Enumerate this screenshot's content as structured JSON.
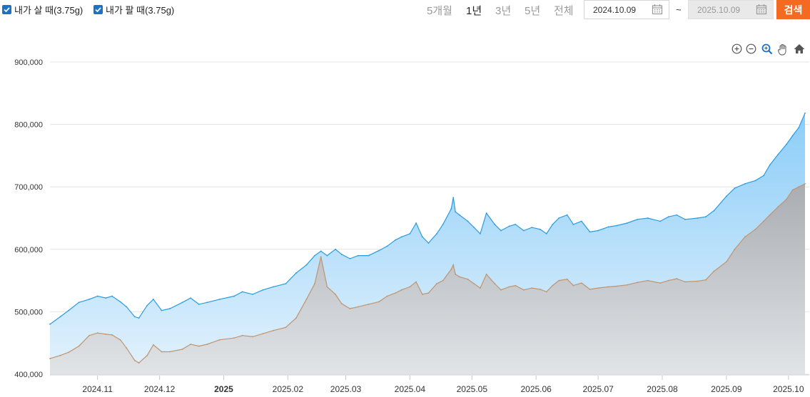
{
  "legend": {
    "buy_label": "내가 살 때(3.75g)",
    "sell_label": "내가 팔 때(3.75g)"
  },
  "periods": [
    "5개월",
    "1년",
    "3년",
    "5년",
    "전체"
  ],
  "active_period": "1년",
  "date_range": {
    "start": "2024.10.09",
    "separator": "~",
    "end": "2025.10.09"
  },
  "search_label": "검색",
  "toolbar_icons": [
    "zoom-in-icon",
    "zoom-out-icon",
    "magnifier-icon",
    "pan-hand-icon",
    "home-icon"
  ],
  "colors": {
    "buy_line": "#2a9be0",
    "buy_fill_top": "#90cff8",
    "sell_line": "#c09470",
    "sell_fill": "#b5b8bc",
    "accent": "#f36a20",
    "checkbox": "#1a73c9"
  },
  "chart_data": {
    "type": "area",
    "x_range": [
      "2024-10-09",
      "2025-10-09"
    ],
    "ylim": [
      400000,
      900000
    ],
    "yticks": [
      "400,000",
      "500,000",
      "600,000",
      "700,000",
      "800,000",
      "900,000"
    ],
    "xticks": [
      {
        "date": "2024-11-01",
        "label": "2024.11"
      },
      {
        "date": "2024-12-01",
        "label": "2024.12"
      },
      {
        "date": "2025-01-01",
        "label": "2025",
        "bold": true
      },
      {
        "date": "2025-02-01",
        "label": "2025.02"
      },
      {
        "date": "2025-03-01",
        "label": "2025.03"
      },
      {
        "date": "2025-04-01",
        "label": "2025.04"
      },
      {
        "date": "2025-05-01",
        "label": "2025.05"
      },
      {
        "date": "2025-06-01",
        "label": "2025.06"
      },
      {
        "date": "2025-07-01",
        "label": "2025.07"
      },
      {
        "date": "2025-08-01",
        "label": "2025.08"
      },
      {
        "date": "2025-09-01",
        "label": "2025.09"
      },
      {
        "date": "2025-10-01",
        "label": "2025.10"
      }
    ],
    "grid": true,
    "series": [
      {
        "name": "내가 살 때(3.75g)",
        "points": [
          [
            "2024-10-09",
            480000
          ],
          [
            "2024-10-14",
            492000
          ],
          [
            "2024-10-18",
            502000
          ],
          [
            "2024-10-23",
            515000
          ],
          [
            "2024-10-28",
            520000
          ],
          [
            "2024-11-01",
            525000
          ],
          [
            "2024-11-05",
            522000
          ],
          [
            "2024-11-08",
            525000
          ],
          [
            "2024-11-12",
            516000
          ],
          [
            "2024-11-15",
            508000
          ],
          [
            "2024-11-19",
            492000
          ],
          [
            "2024-11-21",
            490000
          ],
          [
            "2024-11-25",
            510000
          ],
          [
            "2024-11-28",
            520000
          ],
          [
            "2024-12-02",
            502000
          ],
          [
            "2024-12-06",
            505000
          ],
          [
            "2024-12-12",
            515000
          ],
          [
            "2024-12-16",
            522000
          ],
          [
            "2024-12-20",
            512000
          ],
          [
            "2024-12-24",
            515000
          ],
          [
            "2024-12-30",
            520000
          ],
          [
            "2025-01-06",
            525000
          ],
          [
            "2025-01-10",
            532000
          ],
          [
            "2025-01-15",
            528000
          ],
          [
            "2025-01-20",
            535000
          ],
          [
            "2025-01-25",
            540000
          ],
          [
            "2025-01-31",
            545000
          ],
          [
            "2025-02-05",
            562000
          ],
          [
            "2025-02-10",
            575000
          ],
          [
            "2025-02-14",
            590000
          ],
          [
            "2025-02-17",
            597000
          ],
          [
            "2025-02-20",
            590000
          ],
          [
            "2025-02-24",
            600000
          ],
          [
            "2025-02-27",
            592000
          ],
          [
            "2025-03-03",
            585000
          ],
          [
            "2025-03-07",
            590000
          ],
          [
            "2025-03-12",
            590000
          ],
          [
            "2025-03-17",
            598000
          ],
          [
            "2025-03-21",
            605000
          ],
          [
            "2025-03-25",
            615000
          ],
          [
            "2025-03-28",
            620000
          ],
          [
            "2025-04-01",
            625000
          ],
          [
            "2025-04-04",
            642000
          ],
          [
            "2025-04-07",
            620000
          ],
          [
            "2025-04-10",
            610000
          ],
          [
            "2025-04-14",
            625000
          ],
          [
            "2025-04-17",
            640000
          ],
          [
            "2025-04-21",
            665000
          ],
          [
            "2025-04-22",
            683000
          ],
          [
            "2025-04-23",
            660000
          ],
          [
            "2025-04-25",
            655000
          ],
          [
            "2025-04-29",
            645000
          ],
          [
            "2025-05-02",
            635000
          ],
          [
            "2025-05-05",
            625000
          ],
          [
            "2025-05-08",
            658000
          ],
          [
            "2025-05-12",
            640000
          ],
          [
            "2025-05-15",
            630000
          ],
          [
            "2025-05-19",
            637000
          ],
          [
            "2025-05-22",
            640000
          ],
          [
            "2025-05-26",
            630000
          ],
          [
            "2025-05-30",
            635000
          ],
          [
            "2025-06-03",
            632000
          ],
          [
            "2025-06-06",
            625000
          ],
          [
            "2025-06-09",
            640000
          ],
          [
            "2025-06-12",
            650000
          ],
          [
            "2025-06-16",
            655000
          ],
          [
            "2025-06-19",
            640000
          ],
          [
            "2025-06-23",
            645000
          ],
          [
            "2025-06-27",
            628000
          ],
          [
            "2025-07-01",
            630000
          ],
          [
            "2025-07-06",
            636000
          ],
          [
            "2025-07-10",
            638000
          ],
          [
            "2025-07-15",
            642000
          ],
          [
            "2025-07-20",
            648000
          ],
          [
            "2025-07-25",
            650000
          ],
          [
            "2025-07-31",
            645000
          ],
          [
            "2025-08-04",
            652000
          ],
          [
            "2025-08-08",
            655000
          ],
          [
            "2025-08-12",
            648000
          ],
          [
            "2025-08-18",
            650000
          ],
          [
            "2025-08-22",
            652000
          ],
          [
            "2025-08-26",
            662000
          ],
          [
            "2025-09-01",
            685000
          ],
          [
            "2025-09-05",
            698000
          ],
          [
            "2025-09-10",
            705000
          ],
          [
            "2025-09-15",
            710000
          ],
          [
            "2025-09-19",
            718000
          ],
          [
            "2025-09-22",
            735000
          ],
          [
            "2025-09-26",
            752000
          ],
          [
            "2025-09-30",
            768000
          ],
          [
            "2025-10-03",
            782000
          ],
          [
            "2025-10-06",
            795000
          ],
          [
            "2025-10-09",
            818000
          ]
        ]
      },
      {
        "name": "내가 팔 때(3.75g)",
        "points": [
          [
            "2024-10-09",
            425000
          ],
          [
            "2024-10-14",
            430000
          ],
          [
            "2024-10-18",
            435000
          ],
          [
            "2024-10-23",
            445000
          ],
          [
            "2024-10-28",
            462000
          ],
          [
            "2024-11-01",
            466000
          ],
          [
            "2024-11-05",
            464000
          ],
          [
            "2024-11-08",
            463000
          ],
          [
            "2024-11-12",
            455000
          ],
          [
            "2024-11-15",
            442000
          ],
          [
            "2024-11-19",
            422000
          ],
          [
            "2024-11-21",
            418000
          ],
          [
            "2024-11-25",
            430000
          ],
          [
            "2024-11-28",
            447000
          ],
          [
            "2024-12-02",
            436000
          ],
          [
            "2024-12-06",
            436000
          ],
          [
            "2024-12-12",
            440000
          ],
          [
            "2024-12-16",
            448000
          ],
          [
            "2024-12-20",
            445000
          ],
          [
            "2024-12-24",
            448000
          ],
          [
            "2024-12-30",
            455000
          ],
          [
            "2025-01-06",
            458000
          ],
          [
            "2025-01-10",
            462000
          ],
          [
            "2025-01-15",
            460000
          ],
          [
            "2025-01-20",
            465000
          ],
          [
            "2025-01-25",
            470000
          ],
          [
            "2025-01-31",
            475000
          ],
          [
            "2025-02-05",
            490000
          ],
          [
            "2025-02-10",
            520000
          ],
          [
            "2025-02-14",
            545000
          ],
          [
            "2025-02-17",
            588000
          ],
          [
            "2025-02-20",
            540000
          ],
          [
            "2025-02-24",
            528000
          ],
          [
            "2025-02-27",
            513000
          ],
          [
            "2025-03-03",
            505000
          ],
          [
            "2025-03-07",
            508000
          ],
          [
            "2025-03-12",
            512000
          ],
          [
            "2025-03-17",
            516000
          ],
          [
            "2025-03-21",
            525000
          ],
          [
            "2025-03-25",
            530000
          ],
          [
            "2025-03-28",
            535000
          ],
          [
            "2025-04-01",
            540000
          ],
          [
            "2025-04-04",
            548000
          ],
          [
            "2025-04-07",
            528000
          ],
          [
            "2025-04-10",
            530000
          ],
          [
            "2025-04-14",
            545000
          ],
          [
            "2025-04-17",
            550000
          ],
          [
            "2025-04-21",
            568000
          ],
          [
            "2025-04-22",
            575000
          ],
          [
            "2025-04-23",
            560000
          ],
          [
            "2025-04-25",
            556000
          ],
          [
            "2025-04-29",
            552000
          ],
          [
            "2025-05-02",
            545000
          ],
          [
            "2025-05-05",
            538000
          ],
          [
            "2025-05-08",
            560000
          ],
          [
            "2025-05-12",
            545000
          ],
          [
            "2025-05-15",
            535000
          ],
          [
            "2025-05-19",
            540000
          ],
          [
            "2025-05-22",
            542000
          ],
          [
            "2025-05-26",
            535000
          ],
          [
            "2025-05-30",
            538000
          ],
          [
            "2025-06-03",
            536000
          ],
          [
            "2025-06-06",
            532000
          ],
          [
            "2025-06-09",
            542000
          ],
          [
            "2025-06-12",
            550000
          ],
          [
            "2025-06-16",
            552000
          ],
          [
            "2025-06-19",
            542000
          ],
          [
            "2025-06-23",
            546000
          ],
          [
            "2025-06-27",
            536000
          ],
          [
            "2025-07-01",
            538000
          ],
          [
            "2025-07-06",
            540000
          ],
          [
            "2025-07-10",
            541000
          ],
          [
            "2025-07-15",
            543000
          ],
          [
            "2025-07-20",
            547000
          ],
          [
            "2025-07-25",
            550000
          ],
          [
            "2025-07-31",
            546000
          ],
          [
            "2025-08-04",
            550000
          ],
          [
            "2025-08-08",
            553000
          ],
          [
            "2025-08-12",
            548000
          ],
          [
            "2025-08-18",
            549000
          ],
          [
            "2025-08-22",
            551000
          ],
          [
            "2025-08-26",
            565000
          ],
          [
            "2025-09-01",
            580000
          ],
          [
            "2025-09-05",
            600000
          ],
          [
            "2025-09-10",
            620000
          ],
          [
            "2025-09-15",
            632000
          ],
          [
            "2025-09-19",
            645000
          ],
          [
            "2025-09-22",
            655000
          ],
          [
            "2025-09-26",
            668000
          ],
          [
            "2025-09-30",
            680000
          ],
          [
            "2025-10-03",
            695000
          ],
          [
            "2025-10-06",
            700000
          ],
          [
            "2025-10-09",
            705000
          ]
        ]
      }
    ]
  }
}
